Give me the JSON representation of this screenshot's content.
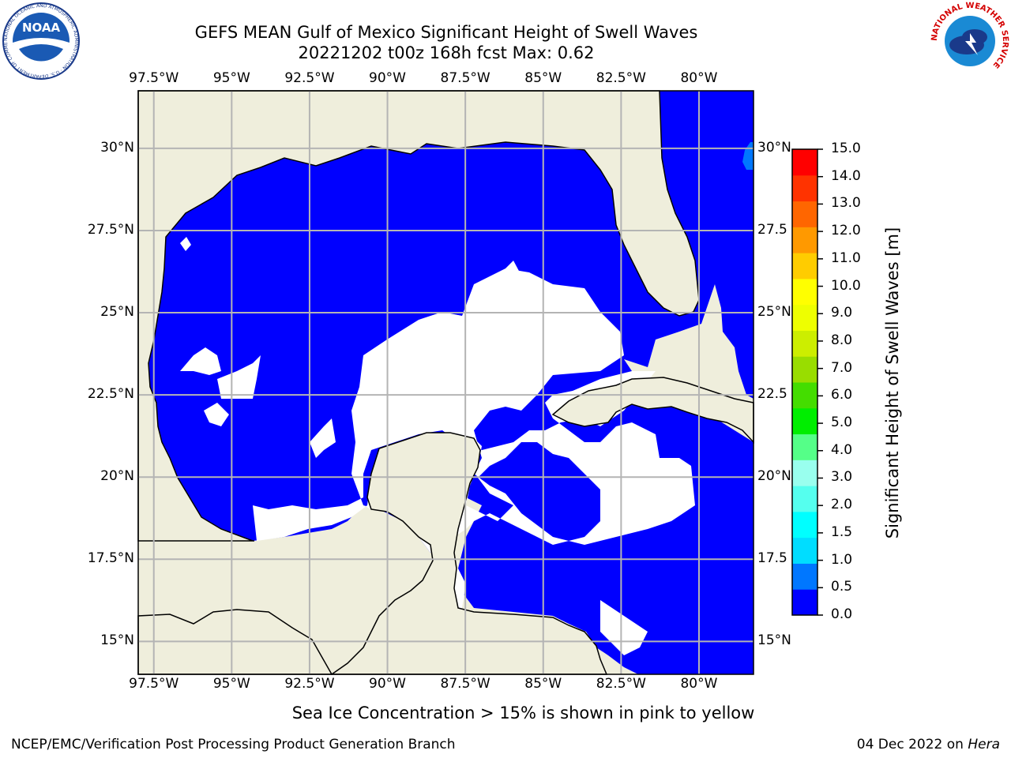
{
  "header": {
    "title_line1": "GEFS MEAN Gulf of Mexico Significant Height of Swell Waves",
    "title_line2": "20221202 t00z 168h fcst   Max: 0.62",
    "left_logo_icon": "noaa-logo-icon",
    "left_logo_text": "NOAA",
    "left_logo_ring_text": "NATIONAL OCEANIC AND ATMOSPHERIC ADMINISTRATION · U.S. DEPARTMENT OF COMMERCE",
    "right_logo_icon": "national-weather-service-logo-icon",
    "right_logo_ring_text": "NATIONAL WEATHER SERVICE"
  },
  "map": {
    "lon_labels": [
      "97.5°W",
      "95°W",
      "92.5°W",
      "90°W",
      "87.5°W",
      "85°W",
      "82.5°W",
      "80°W"
    ],
    "lon_values": [
      -97.5,
      -95,
      -92.5,
      -90,
      -87.5,
      -85,
      -82.5,
      -80
    ],
    "lat_labels_left": [
      "30°N",
      "27.5°N",
      "25°N",
      "22.5°N",
      "20°N",
      "17.5°N",
      "15°N"
    ],
    "lat_labels_right": [
      "30°N",
      "27.5",
      "25°N",
      "22.5",
      "20°N",
      "17.5",
      "15°N"
    ],
    "lat_values": [
      30,
      27.5,
      25,
      22.5,
      20,
      17.5,
      15
    ],
    "lon_range": [
      -98,
      -78.25
    ],
    "lat_range": [
      14,
      31.75
    ],
    "grid": true,
    "colors": {
      "land": "#efeedc",
      "swell_low": "#0000ff",
      "swell_mid": "#0077ff",
      "grid": "#b4b4b4"
    }
  },
  "colorbar": {
    "label": "Significant Height of Swell Waves [m]",
    "tick_labels": [
      "0.0",
      "0.5",
      "1.0",
      "1.5",
      "2.0",
      "3.0",
      "4.0",
      "5.0",
      "6.0",
      "7.0",
      "8.0",
      "9.0",
      "10.0",
      "11.0",
      "12.0",
      "13.0",
      "14.0",
      "15.0"
    ],
    "colors": [
      "#0000ff",
      "#0077ff",
      "#00ddff",
      "#00ffff",
      "#55ffee",
      "#99ffee",
      "#55ff88",
      "#00ee00",
      "#44dd00",
      "#99dd00",
      "#ccee00",
      "#eeff00",
      "#ffff00",
      "#ffcc00",
      "#ff9900",
      "#ff6600",
      "#ff3300",
      "#ff0000"
    ]
  },
  "footer": {
    "note": "Sea Ice Concentration > 15% is shown in pink to yellow",
    "left_credit": "NCEP/EMC/Verification Post Processing Product Generation Branch",
    "date": "04 Dec 2022 on ",
    "host": "Hera"
  }
}
